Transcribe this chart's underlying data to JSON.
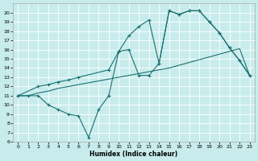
{
  "xlabel": "Humidex (Indice chaleur)",
  "background_color": "#c8ecec",
  "line_color": "#1a7070",
  "grid_color": "#ffffff",
  "xlim": [
    -0.5,
    23.5
  ],
  "ylim": [
    6,
    21
  ],
  "xticks": [
    0,
    1,
    2,
    3,
    4,
    5,
    6,
    7,
    8,
    9,
    10,
    11,
    12,
    13,
    14,
    15,
    16,
    17,
    18,
    19,
    20,
    21,
    22,
    23
  ],
  "yticks": [
    6,
    7,
    8,
    9,
    10,
    11,
    12,
    13,
    14,
    15,
    16,
    17,
    18,
    19,
    20
  ],
  "line_jagged_x": [
    0,
    1,
    2,
    3,
    4,
    5,
    6,
    7,
    8,
    9,
    10,
    11,
    12,
    13,
    14,
    15,
    16,
    17,
    18,
    19,
    20,
    21,
    22,
    23
  ],
  "line_jagged_y": [
    11,
    11,
    11,
    10,
    9.5,
    9,
    8.8,
    6.5,
    9.5,
    11,
    15.8,
    16,
    13.2,
    13.2,
    14.5,
    20.2,
    19.8,
    20.2,
    20.2,
    19.0,
    17.8,
    16.2,
    14.8,
    13.2
  ],
  "line_mid_x": [
    0,
    2,
    3,
    4,
    5,
    6,
    9,
    10,
    11,
    12,
    13,
    14,
    15,
    16,
    17,
    18,
    19,
    20,
    21,
    22,
    23
  ],
  "line_mid_y": [
    11,
    12,
    12.2,
    12.5,
    12.7,
    13,
    13.8,
    15.8,
    17.5,
    18.5,
    19.2,
    14.5,
    20.2,
    19.8,
    20.2,
    20.2,
    19.0,
    17.8,
    16.2,
    14.8,
    13.2
  ],
  "line_diag_x": [
    0,
    1,
    2,
    3,
    4,
    5,
    6,
    7,
    8,
    9,
    10,
    11,
    12,
    13,
    14,
    15,
    16,
    17,
    18,
    19,
    20,
    21,
    22,
    23
  ],
  "line_diag_y": [
    11,
    11,
    11.3,
    11.5,
    11.8,
    12.0,
    12.2,
    12.4,
    12.6,
    12.8,
    13.0,
    13.2,
    13.4,
    13.6,
    13.8,
    14.0,
    14.3,
    14.6,
    14.9,
    15.2,
    15.5,
    15.8,
    16.1,
    13.2
  ]
}
